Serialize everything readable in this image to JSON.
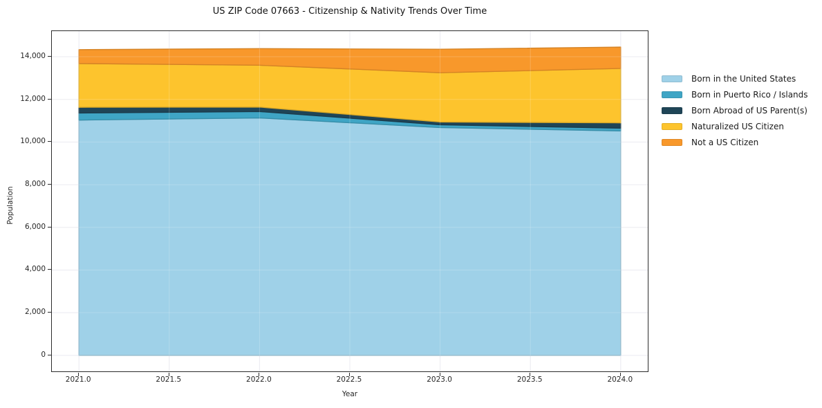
{
  "chart_data": {
    "type": "area",
    "stacked": true,
    "title": "US ZIP Code 07663 - Citizenship & Nativity Trends Over Time",
    "xlabel": "Year",
    "ylabel": "Population",
    "x": [
      2021,
      2022,
      2023,
      2024
    ],
    "series": [
      {
        "name": "Born in the United States",
        "color": "#9FD1E8",
        "values": [
          11030,
          11130,
          10680,
          10520
        ]
      },
      {
        "name": "Born in Puerto Rico / Islands",
        "color": "#3FA5C5",
        "values": [
          330,
          300,
          130,
          130
        ]
      },
      {
        "name": "Born Abroad of US Parent(s)",
        "color": "#1F4557",
        "values": [
          270,
          210,
          130,
          250
        ]
      },
      {
        "name": "Naturalized US Citizen",
        "color": "#FDC42D",
        "values": [
          2050,
          1960,
          2310,
          2550
        ]
      },
      {
        "name": "Not a US Citizen",
        "color": "#F8982B",
        "values": [
          650,
          780,
          1100,
          1000
        ]
      }
    ],
    "totals": [
      14330,
      14380,
      14350,
      14450
    ],
    "xlim": [
      2020.85,
      2024.15
    ],
    "ylim": [
      -750,
      15200
    ],
    "xticks": [
      2021.0,
      2021.5,
      2022.0,
      2022.5,
      2023.0,
      2023.5,
      2024.0
    ],
    "xtick_labels": [
      "2021.0",
      "2021.5",
      "2022.0",
      "2022.5",
      "2023.0",
      "2023.5",
      "2024.0"
    ],
    "yticks": [
      0,
      2000,
      4000,
      6000,
      8000,
      10000,
      12000,
      14000
    ],
    "ytick_labels": [
      "0",
      "2,000",
      "4,000",
      "6,000",
      "8,000",
      "10,000",
      "12,000",
      "14,000"
    ],
    "grid": true,
    "legend_position": "right-outside",
    "colors": {
      "background": "#FFFFFF",
      "spine": "#2B2B2B",
      "grid_under": "#E7E7EE",
      "grid_over": "rgba(255,255,255,0.20)",
      "text": "#262626"
    }
  }
}
